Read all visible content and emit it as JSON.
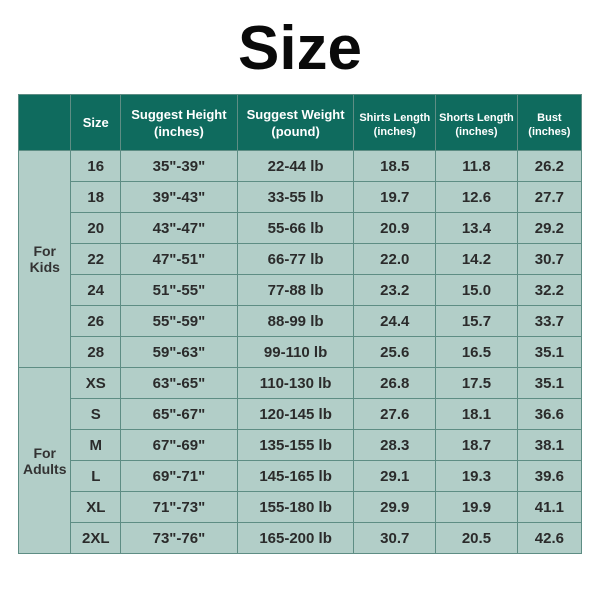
{
  "title": "Size",
  "title_fontsize": 62,
  "title_color": "#0a0a0a",
  "colors": {
    "header_bg": "#0f6b5e",
    "header_text": "#ffffff",
    "group_bg": "#b2cec8",
    "group_text": "#333333",
    "row_bg": "#b2cec8",
    "row_text": "#2b2b2b",
    "border": "#5e8d84",
    "page_bg": "#ffffff"
  },
  "columns": [
    {
      "key": "group",
      "label": "",
      "sublabel": "",
      "width": "9%"
    },
    {
      "key": "size",
      "label": "Size",
      "sublabel": "",
      "width": "8.5%"
    },
    {
      "key": "height",
      "label": "Suggest Height",
      "sublabel": "(inches)",
      "width": "20%"
    },
    {
      "key": "weight",
      "label": "Suggest Weight",
      "sublabel": "(pound)",
      "width": "20%"
    },
    {
      "key": "shirts",
      "label": "Shirts Length",
      "sublabel": "(inches)",
      "width": "14%"
    },
    {
      "key": "shorts",
      "label": "Shorts Length",
      "sublabel": "(inches)",
      "width": "14%"
    },
    {
      "key": "bust",
      "label": "Bust",
      "sublabel": "(inches)",
      "width": "11%"
    }
  ],
  "header_fontsize_main": 13,
  "header_fontsize_side": 11,
  "cell_fontsize": 15,
  "group_fontsize": 14,
  "groups": [
    {
      "label_line1": "For",
      "label_line2": "Kids",
      "rows": [
        {
          "size": "16",
          "height": "35\"-39\"",
          "weight": "22-44 lb",
          "shirts": "18.5",
          "shorts": "11.8",
          "bust": "26.2"
        },
        {
          "size": "18",
          "height": "39\"-43\"",
          "weight": "33-55 lb",
          "shirts": "19.7",
          "shorts": "12.6",
          "bust": "27.7"
        },
        {
          "size": "20",
          "height": "43\"-47\"",
          "weight": "55-66 lb",
          "shirts": "20.9",
          "shorts": "13.4",
          "bust": "29.2"
        },
        {
          "size": "22",
          "height": "47\"-51\"",
          "weight": "66-77 lb",
          "shirts": "22.0",
          "shorts": "14.2",
          "bust": "30.7"
        },
        {
          "size": "24",
          "height": "51\"-55\"",
          "weight": "77-88 lb",
          "shirts": "23.2",
          "shorts": "15.0",
          "bust": "32.2"
        },
        {
          "size": "26",
          "height": "55\"-59\"",
          "weight": "88-99 lb",
          "shirts": "24.4",
          "shorts": "15.7",
          "bust": "33.7"
        },
        {
          "size": "28",
          "height": "59\"-63\"",
          "weight": "99-110 lb",
          "shirts": "25.6",
          "shorts": "16.5",
          "bust": "35.1"
        }
      ]
    },
    {
      "label_line1": "For",
      "label_line2": "Adults",
      "rows": [
        {
          "size": "XS",
          "height": "63\"-65\"",
          "weight": "110-130 lb",
          "shirts": "26.8",
          "shorts": "17.5",
          "bust": "35.1"
        },
        {
          "size": "S",
          "height": "65\"-67\"",
          "weight": "120-145 lb",
          "shirts": "27.6",
          "shorts": "18.1",
          "bust": "36.6"
        },
        {
          "size": "M",
          "height": "67\"-69\"",
          "weight": "135-155 lb",
          "shirts": "28.3",
          "shorts": "18.7",
          "bust": "38.1"
        },
        {
          "size": "L",
          "height": "69\"-71\"",
          "weight": "145-165 lb",
          "shirts": "29.1",
          "shorts": "19.3",
          "bust": "39.6"
        },
        {
          "size": "XL",
          "height": "71\"-73\"",
          "weight": "155-180 lb",
          "shirts": "29.9",
          "shorts": "19.9",
          "bust": "41.1"
        },
        {
          "size": "2XL",
          "height": "73\"-76\"",
          "weight": "165-200 lb",
          "shirts": "30.7",
          "shorts": "20.5",
          "bust": "42.6"
        }
      ]
    }
  ]
}
